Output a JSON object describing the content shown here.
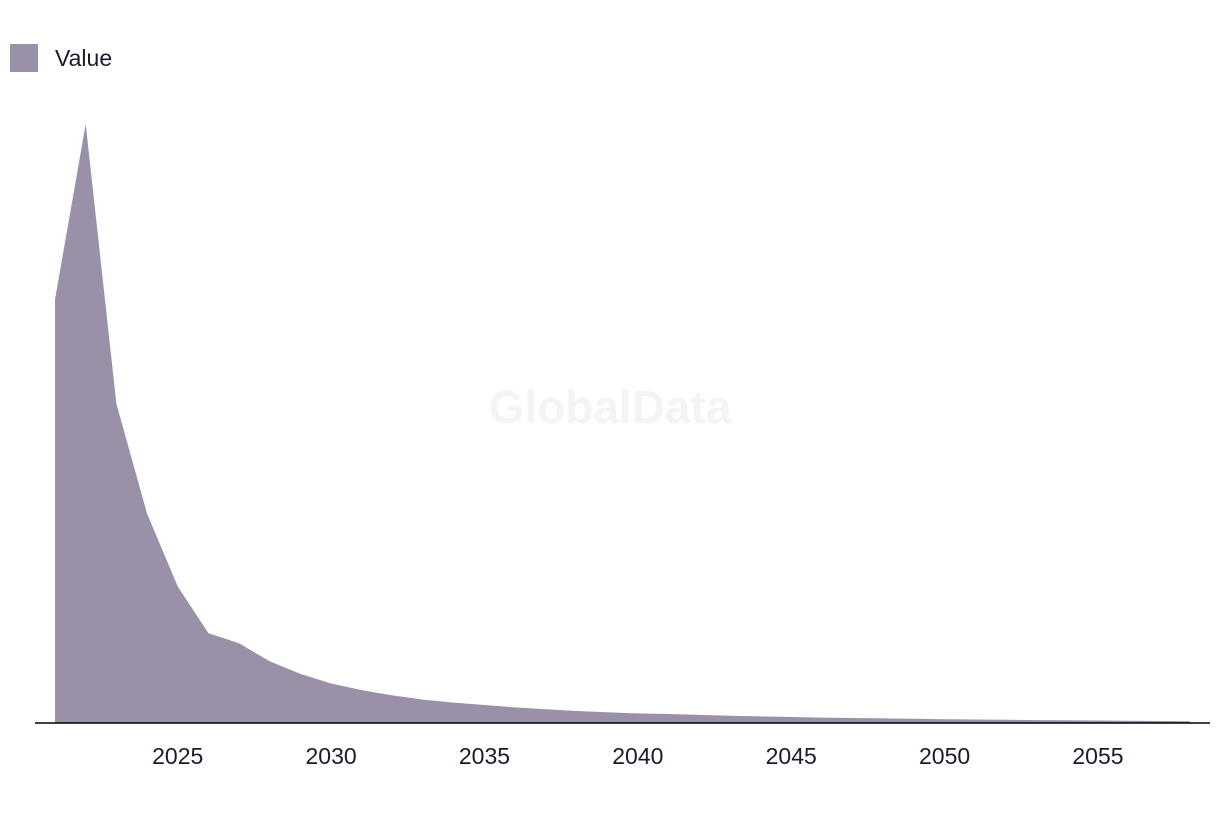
{
  "watermark": "GlobalData",
  "colors": {
    "area": "#9a91a9",
    "axis": "#000000",
    "text": "#1b1b2b"
  },
  "chart_data": {
    "type": "area",
    "title": "",
    "xlabel": "",
    "ylabel": "",
    "legend": {
      "position": "top-left",
      "entries": [
        "Value"
      ]
    },
    "grid": false,
    "xlim": [
      2021,
      2058
    ],
    "ylim": [
      0,
      100
    ],
    "x_ticks": [
      2025,
      2030,
      2035,
      2040,
      2045,
      2050,
      2055
    ],
    "x_tick_labels": [
      "2025",
      "2030",
      "2035",
      "2040",
      "2045",
      "2050",
      "2055"
    ],
    "x": [
      2021,
      2022,
      2023,
      2024,
      2025,
      2026,
      2027,
      2028,
      2029,
      2030,
      2031,
      2032,
      2033,
      2034,
      2035,
      2036,
      2037,
      2038,
      2039,
      2040,
      2041,
      2042,
      2043,
      2044,
      2045,
      2046,
      2047,
      2048,
      2049,
      2050,
      2051,
      2052,
      2053,
      2054,
      2055,
      2056,
      2057,
      2058
    ],
    "series": [
      {
        "name": "Value",
        "values": [
          70.7,
          100,
          53.3,
          35,
          22.8,
          15,
          13.3,
          10.3,
          8.2,
          6.6,
          5.5,
          4.6,
          3.9,
          3.4,
          3.0,
          2.6,
          2.3,
          2.0,
          1.8,
          1.6,
          1.5,
          1.35,
          1.2,
          1.1,
          1.0,
          0.9,
          0.83,
          0.76,
          0.7,
          0.64,
          0.58,
          0.53,
          0.49,
          0.45,
          0.41,
          0.37,
          0.33,
          0.3
        ]
      }
    ]
  }
}
